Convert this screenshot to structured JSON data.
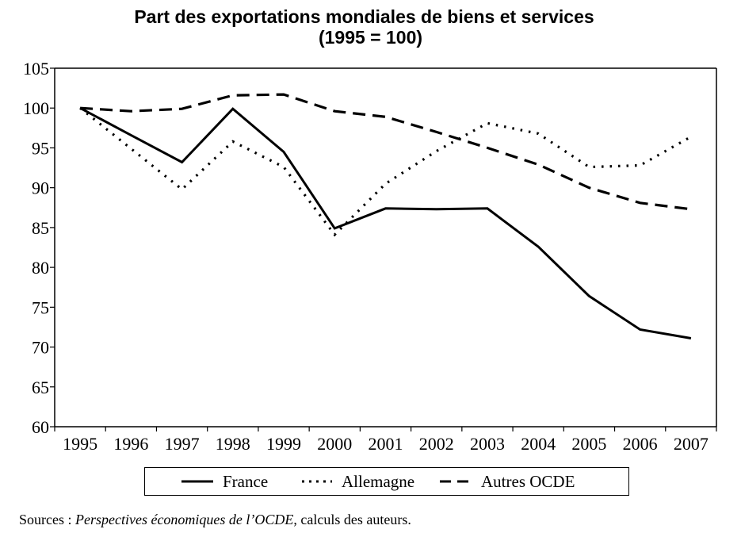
{
  "chart_data": {
    "type": "line",
    "title": "Part des exportations mondiales de biens et services",
    "subtitle": "(1995 = 100)",
    "xlabel": "",
    "ylabel": "",
    "categories": [
      "1995",
      "1996",
      "1997",
      "1998",
      "1999",
      "2000",
      "2001",
      "2002",
      "2003",
      "2004",
      "2005",
      "2006",
      "2007"
    ],
    "ylim": [
      60,
      105
    ],
    "yticks": [
      60,
      65,
      70,
      75,
      80,
      85,
      90,
      95,
      100,
      105
    ],
    "ytick_labels": [
      "60",
      "65",
      "70",
      "75",
      "80",
      "85",
      "90",
      "95",
      "100",
      "105"
    ],
    "grid": false,
    "legend_position": "bottom",
    "series": [
      {
        "name": "France",
        "style": "solid",
        "values": [
          100,
          96.6,
          93.2,
          99.9,
          94.5,
          84.9,
          87.4,
          87.3,
          87.4,
          82.6,
          76.4,
          72.2,
          71.1
        ]
      },
      {
        "name": "Allemagne",
        "style": "dotted",
        "values": [
          100,
          94.9,
          89.8,
          95.8,
          92.6,
          84.1,
          90.5,
          94.6,
          98.1,
          96.8,
          92.6,
          92.8,
          96.4
        ]
      },
      {
        "name": "Autres OCDE",
        "style": "dashed",
        "values": [
          100,
          99.6,
          99.9,
          101.6,
          101.7,
          99.6,
          98.9,
          97.0,
          95.0,
          92.9,
          90.0,
          88.1,
          87.3
        ]
      }
    ]
  },
  "legend": {
    "items": [
      {
        "label": "France",
        "style": "solid"
      },
      {
        "label": "Allemagne",
        "style": "dotted"
      },
      {
        "label": "Autres OCDE",
        "style": "dashed"
      }
    ]
  },
  "source": {
    "prefix": "Sources : ",
    "italic": "Perspectives économiques de l’OCDE",
    "suffix": ", calculs des auteurs."
  }
}
